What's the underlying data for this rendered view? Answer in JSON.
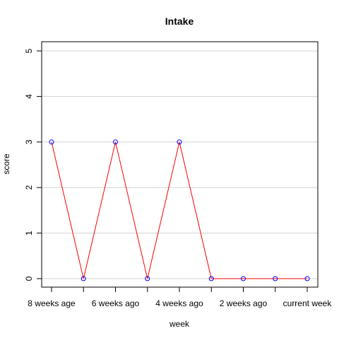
{
  "chart_data": {
    "type": "line",
    "title": "Intake",
    "xlabel": "week",
    "ylabel": "score",
    "ylim": [
      0,
      5
    ],
    "yticks": [
      0,
      1,
      2,
      3,
      4,
      5
    ],
    "x": [
      1,
      2,
      3,
      4,
      5,
      6,
      7,
      8,
      9
    ],
    "xticks": [
      1,
      2,
      3,
      4,
      5,
      6,
      7,
      8,
      9
    ],
    "xtick_labels": [
      "8 weeks age",
      "",
      "6 weeks ago",
      "",
      "4 weeks ago",
      "",
      "2 weeks ago",
      "",
      "current week"
    ],
    "grid": {
      "horizontal": true,
      "vertical": false
    },
    "series": [
      {
        "values": [
          3,
          0,
          3,
          0,
          3,
          0,
          0,
          0,
          0
        ],
        "line_color": "#ff0000",
        "marker_color": "#0000ff",
        "marker": "open-circle"
      }
    ],
    "colors": {
      "grid": "#d3d3d3",
      "frame": "#000000",
      "background": "#ffffff"
    }
  }
}
